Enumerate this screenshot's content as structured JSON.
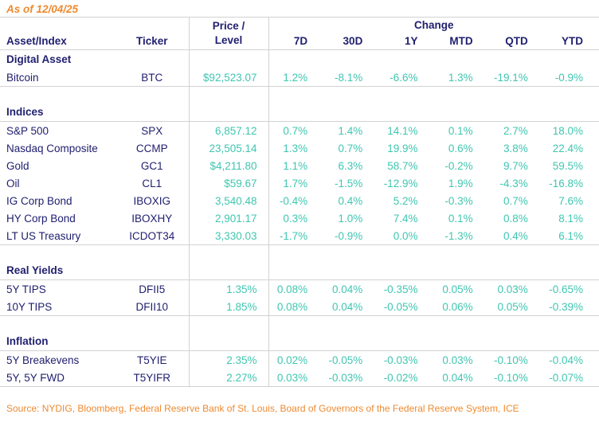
{
  "meta": {
    "as_of_label": "As of 12/04/25",
    "source": "Source: NYDIG, Bloomberg, Federal Reserve Bank of St. Louis, Board of Governors of the Federal Reserve System, ICE"
  },
  "colors": {
    "navy_text": "#212070",
    "teal_value": "#40c6b1",
    "orange_accent": "#ee8a31",
    "grid_line": "#d2d2d2",
    "background": "#ffffff"
  },
  "chart_data": {
    "type": "table",
    "title": "As of 12/04/25",
    "headers": {
      "asset": "Asset/Index",
      "ticker": "Ticker",
      "price_line1": "Price /",
      "price_line2": "Level",
      "change_group": "Change",
      "periods": [
        "7D",
        "30D",
        "1Y",
        "MTD",
        "QTD",
        "YTD"
      ]
    },
    "sections": [
      {
        "label": "Digital Asset",
        "rows": [
          {
            "asset": "Bitcoin",
            "ticker": "BTC",
            "price": "$92,523.07",
            "changes": [
              "1.2%",
              "-8.1%",
              "-6.6%",
              "1.3%",
              "-19.1%",
              "-0.9%"
            ]
          }
        ]
      },
      {
        "label": "Indices",
        "rows": [
          {
            "asset": "S&P 500",
            "ticker": "SPX",
            "price": "6,857.12",
            "changes": [
              "0.7%",
              "1.4%",
              "14.1%",
              "0.1%",
              "2.7%",
              "18.0%"
            ]
          },
          {
            "asset": "Nasdaq Composite",
            "ticker": "CCMP",
            "price": "23,505.14",
            "changes": [
              "1.3%",
              "0.7%",
              "19.9%",
              "0.6%",
              "3.8%",
              "22.4%"
            ]
          },
          {
            "asset": "Gold",
            "ticker": "GC1",
            "price": "$4,211.80",
            "changes": [
              "1.1%",
              "6.3%",
              "58.7%",
              "-0.2%",
              "9.7%",
              "59.5%"
            ]
          },
          {
            "asset": "Oil",
            "ticker": "CL1",
            "price": "$59.67",
            "changes": [
              "1.7%",
              "-1.5%",
              "-12.9%",
              "1.9%",
              "-4.3%",
              "-16.8%"
            ]
          },
          {
            "asset": "IG Corp Bond",
            "ticker": "IBOXIG",
            "price": "3,540.48",
            "changes": [
              "-0.4%",
              "0.4%",
              "5.2%",
              "-0.3%",
              "0.7%",
              "7.6%"
            ]
          },
          {
            "asset": "HY Corp Bond",
            "ticker": "IBOXHY",
            "price": "2,901.17",
            "changes": [
              "0.3%",
              "1.0%",
              "7.4%",
              "0.1%",
              "0.8%",
              "8.1%"
            ]
          },
          {
            "asset": "LT US Treasury",
            "ticker": "ICDOT34",
            "price": "3,330.03",
            "changes": [
              "-1.7%",
              "-0.9%",
              "0.0%",
              "-1.3%",
              "0.4%",
              "6.1%"
            ]
          }
        ]
      },
      {
        "label": "Real Yields",
        "rows": [
          {
            "asset": "5Y TIPS",
            "ticker": "DFII5",
            "price": "1.35%",
            "changes": [
              "0.08%",
              "0.04%",
              "-0.35%",
              "0.05%",
              "0.03%",
              "-0.65%"
            ]
          },
          {
            "asset": "10Y TIPS",
            "ticker": "DFII10",
            "price": "1.85%",
            "changes": [
              "0.08%",
              "0.04%",
              "-0.05%",
              "0.06%",
              "0.05%",
              "-0.39%"
            ]
          }
        ]
      },
      {
        "label": "Inflation",
        "rows": [
          {
            "asset": "5Y Breakevens",
            "ticker": "T5YIE",
            "price": "2.35%",
            "changes": [
              "0.02%",
              "-0.05%",
              "-0.03%",
              "0.03%",
              "-0.10%",
              "-0.04%"
            ]
          },
          {
            "asset": "5Y, 5Y FWD",
            "ticker": "T5YIFR",
            "price": "2.27%",
            "changes": [
              "0.03%",
              "-0.03%",
              "-0.02%",
              "0.04%",
              "-0.10%",
              "-0.07%"
            ]
          }
        ]
      }
    ]
  }
}
